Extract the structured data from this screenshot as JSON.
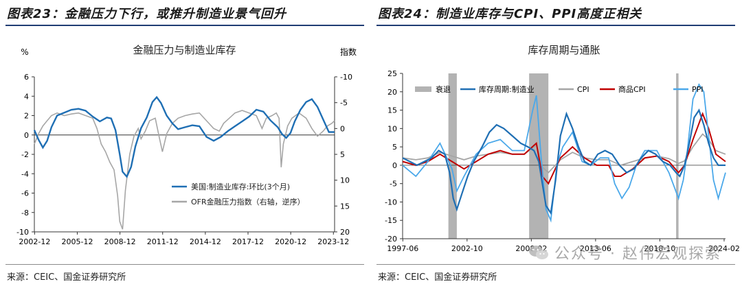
{
  "chart_data": [
    {
      "type": "line",
      "figure_title": "图表23：金融压力下行，或推升制造业景气回升",
      "title": "金融压力与制造业库存",
      "ylabel_left": "%",
      "ylabel_right": "指数",
      "ylim_left": [
        -10,
        6
      ],
      "ylim_right": [
        20,
        -10
      ],
      "yticks_left": [
        "6",
        "4",
        "2",
        "0",
        "-2",
        "-4",
        "-6",
        "-8",
        "-10"
      ],
      "yticks_right": [
        "-10",
        "-5",
        "0",
        "5",
        "10",
        "15",
        "20"
      ],
      "xticks": [
        "2002-12",
        "2005-12",
        "2008-12",
        "2011-12",
        "2014-12",
        "2017-12",
        "2020-12",
        "2023-12"
      ],
      "x_range": [
        2002.9,
        2024.0
      ],
      "legend_position": "bottom-right",
      "series": [
        {
          "name": "美国:制造业库存:环比(3个月)",
          "color": "#1f6fb4",
          "axis": "left",
          "x": [
            2002.9,
            2003.2,
            2003.5,
            2003.8,
            2004.1,
            2004.5,
            2005.0,
            2005.5,
            2006.0,
            2006.5,
            2007.0,
            2007.5,
            2008.0,
            2008.3,
            2008.6,
            2008.9,
            2009.1,
            2009.4,
            2009.7,
            2010.0,
            2010.4,
            2010.8,
            2011.2,
            2011.5,
            2011.8,
            2012.2,
            2012.6,
            2013.0,
            2013.5,
            2014.0,
            2014.5,
            2015.0,
            2015.5,
            2016.0,
            2016.5,
            2017.0,
            2017.5,
            2018.0,
            2018.5,
            2019.0,
            2019.5,
            2020.0,
            2020.3,
            2020.6,
            2020.9,
            2021.2,
            2021.6,
            2022.0,
            2022.4,
            2022.8,
            2023.2,
            2023.6,
            2024.0
          ],
          "values": [
            0.5,
            -0.5,
            -1.3,
            -0.6,
            0.8,
            2.0,
            2.3,
            2.6,
            2.7,
            2.5,
            1.9,
            1.4,
            1.8,
            1.7,
            0.5,
            -2.0,
            -3.8,
            -4.3,
            -3.3,
            -1.2,
            0.7,
            1.8,
            3.4,
            3.9,
            3.3,
            2.0,
            1.2,
            0.6,
            0.8,
            1.0,
            0.9,
            -0.2,
            -0.6,
            -0.2,
            0.4,
            0.9,
            1.4,
            1.9,
            2.6,
            2.4,
            1.5,
            0.8,
            0.1,
            -0.3,
            0.2,
            1.4,
            2.6,
            3.4,
            3.7,
            2.9,
            1.6,
            0.3,
            0.3
          ]
        },
        {
          "name": "OFR金融压力指数（右轴，逆序）",
          "color": "#a6a6a6",
          "axis": "right",
          "x": [
            2002.9,
            2003.2,
            2003.5,
            2003.8,
            2004.1,
            2004.5,
            2005.0,
            2005.5,
            2006.0,
            2006.5,
            2007.0,
            2007.3,
            2007.6,
            2007.9,
            2008.2,
            2008.5,
            2008.75,
            2008.9,
            2009.1,
            2009.3,
            2009.6,
            2009.9,
            2010.2,
            2010.4,
            2010.7,
            2011.0,
            2011.4,
            2011.7,
            2011.9,
            2012.2,
            2012.6,
            2013.0,
            2013.5,
            2014.0,
            2014.5,
            2015.0,
            2015.5,
            2015.9,
            2016.2,
            2016.6,
            2017.0,
            2017.5,
            2018.0,
            2018.5,
            2018.9,
            2019.2,
            2019.6,
            2019.9,
            2020.1,
            2020.25,
            2020.4,
            2020.7,
            2021.0,
            2021.5,
            2022.0,
            2022.4,
            2022.8,
            2023.2,
            2023.5,
            2023.8,
            2024.0
          ],
          "values": [
            3,
            1,
            -0.5,
            -1.5,
            -2.5,
            -3,
            -2.5,
            -2.8,
            -3,
            -2.5,
            -2,
            0,
            3,
            4.5,
            6.5,
            8,
            13,
            18,
            19.5,
            12,
            5,
            1.5,
            0,
            2,
            0.5,
            -1.5,
            -2,
            2,
            4.5,
            1,
            -1,
            -2,
            -2.5,
            -2.8,
            -3,
            -1.5,
            0,
            0.5,
            -1,
            -2,
            -3,
            -3.5,
            -3,
            -2.5,
            0,
            -2,
            -2.5,
            -3,
            -2,
            7.5,
            3,
            -0.5,
            -2,
            -3,
            -2,
            0,
            1.5,
            0.5,
            -0.5,
            -1,
            -1.5
          ]
        }
      ]
    },
    {
      "type": "line",
      "figure_title": "图表24：制造业库存与CPI、PPI高度正相关",
      "title": "库存周期与通胀",
      "ylim": [
        -20,
        25
      ],
      "yticks": [
        "25",
        "20",
        "15",
        "10",
        "5",
        "0",
        "-5",
        "-10",
        "-15",
        "-20"
      ],
      "xticks": [
        "1997-06",
        "2002-10",
        "2008-02",
        "2013-06",
        "2018-10",
        "2024-02"
      ],
      "x_range": [
        1997.4,
        2024.2
      ],
      "legend_position": "top",
      "recessions": [
        [
          2001.2,
          2001.9
        ],
        [
          2007.9,
          2009.5
        ],
        [
          2020.1,
          2020.3
        ]
      ],
      "recession_label": "衰退",
      "recession_color": "#b3b3b3",
      "series": [
        {
          "name": "库存周期:制造业",
          "color": "#1f6fb4",
          "x": [
            1997.4,
            1998.0,
            1998.6,
            1999.2,
            1999.8,
            2000.4,
            2000.9,
            2001.3,
            2001.6,
            2001.9,
            2002.3,
            2002.8,
            2003.3,
            2004.0,
            2004.6,
            2005.2,
            2005.8,
            2006.5,
            2007.2,
            2007.8,
            2008.3,
            2008.7,
            2009.0,
            2009.3,
            2009.7,
            2010.1,
            2010.5,
            2011.0,
            2011.5,
            2012.0,
            2012.5,
            2013.0,
            2013.6,
            2014.2,
            2014.8,
            2015.4,
            2016.0,
            2016.6,
            2017.2,
            2017.8,
            2018.4,
            2019.0,
            2019.6,
            2020.1,
            2020.4,
            2020.8,
            2021.2,
            2021.6,
            2022.0,
            2022.4,
            2022.8,
            2023.2,
            2023.6,
            2024.2
          ],
          "values": [
            2,
            1,
            0,
            1,
            2,
            4,
            3,
            -2,
            -9,
            -12,
            -8,
            -3,
            1,
            5,
            9,
            11,
            10,
            8,
            6,
            5,
            4,
            1,
            -5,
            -11,
            -13,
            -4,
            8,
            14,
            10,
            5,
            1,
            0,
            3,
            4,
            3,
            0,
            -2,
            -1,
            2,
            4,
            3,
            1,
            0,
            -2,
            -3,
            0,
            6,
            13,
            15,
            11,
            6,
            2,
            0,
            0
          ]
        },
        {
          "name": "CPI",
          "color": "#a6a6a6",
          "x": [
            1997.4,
            1998.5,
            1999.5,
            2000.5,
            2001.5,
            2002.5,
            2003.5,
            2004.5,
            2005.5,
            2006.5,
            2007.5,
            2008.5,
            2009.0,
            2009.5,
            2010.5,
            2011.5,
            2012.5,
            2013.5,
            2014.5,
            2015.5,
            2016.5,
            2017.5,
            2018.5,
            2019.5,
            2020.3,
            2020.8,
            2021.5,
            2022.3,
            2022.8,
            2023.4,
            2024.2
          ],
          "values": [
            2,
            1.5,
            2,
            3.5,
            2.5,
            1.5,
            2.5,
            3,
            3.5,
            3,
            3,
            5.5,
            -0.5,
            -2,
            1.5,
            3.5,
            2,
            1.5,
            1.5,
            0,
            1,
            2,
            2.5,
            1.8,
            0.5,
            1.2,
            5,
            8.5,
            7,
            4,
            3
          ]
        },
        {
          "name": "商品CPI",
          "color": "#c00000",
          "x": [
            1997.4,
            1998.5,
            1999.5,
            2000.5,
            2001.5,
            2002.5,
            2003.5,
            2004.5,
            2005.5,
            2006.5,
            2007.5,
            2008.5,
            2009.0,
            2009.5,
            2010.5,
            2011.5,
            2012.5,
            2013.5,
            2014.5,
            2015.0,
            2015.5,
            2016.5,
            2017.5,
            2018.5,
            2019.5,
            2020.3,
            2020.8,
            2021.5,
            2022.3,
            2022.8,
            2023.4,
            2024.2
          ],
          "values": [
            1,
            0,
            1,
            3,
            1,
            -1,
            1,
            3,
            4,
            3,
            3,
            6,
            -3,
            -5,
            2,
            5,
            2,
            0,
            0,
            -3,
            -3,
            -1,
            2,
            2.5,
            1,
            -2,
            0,
            7,
            14,
            10,
            3,
            1
          ]
        },
        {
          "name": "PPI",
          "color": "#4aa8ea",
          "x": [
            1997.4,
            1998.5,
            1999.5,
            2000.5,
            2001.5,
            2001.9,
            2002.5,
            2003.5,
            2004.5,
            2005.5,
            2006.5,
            2007.5,
            2008.2,
            2008.5,
            2008.9,
            2009.3,
            2009.7,
            2010.2,
            2010.7,
            2011.5,
            2012.3,
            2013.0,
            2013.8,
            2014.5,
            2015.0,
            2015.6,
            2016.2,
            2016.8,
            2017.5,
            2018.5,
            2019.5,
            2020.3,
            2020.7,
            2021.0,
            2021.5,
            2022.0,
            2022.4,
            2022.8,
            2023.2,
            2023.6,
            2024.2
          ],
          "values": [
            0,
            -3,
            1,
            6,
            -1,
            -7,
            -3,
            3,
            6,
            7,
            4,
            4,
            15,
            19,
            2,
            -12,
            -15,
            0,
            5,
            9,
            1,
            0,
            2,
            2,
            -5,
            -9,
            -6,
            0,
            4,
            4,
            -2,
            -9,
            -4,
            3,
            18,
            22,
            20,
            8,
            -4,
            -9,
            -2
          ]
        }
      ]
    }
  ],
  "sources": {
    "left": "来源：CEIC、国金证券研究所",
    "right": "来源：CEIC、国金证券研究所"
  },
  "watermark": "公众号 · 赵伟宏观探索"
}
